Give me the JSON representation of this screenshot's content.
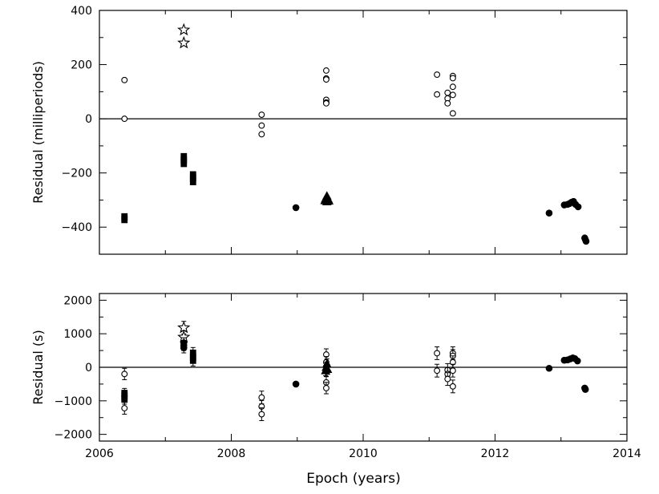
{
  "chart_data": [
    {
      "type": "scatter",
      "title": "",
      "xlabel": "",
      "ylabel": "Residual (milliperiods)",
      "xlim": [
        2006,
        2014
      ],
      "ylim": [
        -500,
        400
      ],
      "yticks": [
        -400,
        -200,
        0,
        200,
        400
      ],
      "yticks_minor": [
        -500,
        -300,
        -100,
        100,
        300
      ],
      "xticks_labeled": false,
      "grid": false,
      "zero_line": true,
      "series": [
        {
          "marker": "open-circle",
          "points": [
            [
              2006.38,
              143
            ],
            [
              2006.38,
              0
            ],
            [
              2008.46,
              15
            ],
            [
              2008.46,
              -25
            ],
            [
              2008.46,
              -57
            ],
            [
              2009.44,
              178
            ],
            [
              2009.44,
              149
            ],
            [
              2009.44,
              145
            ],
            [
              2009.44,
              70
            ],
            [
              2009.44,
              60
            ],
            [
              2009.44,
              57
            ],
            [
              2011.12,
              163
            ],
            [
              2011.12,
              90
            ],
            [
              2011.28,
              96
            ],
            [
              2011.28,
              75
            ],
            [
              2011.28,
              57
            ],
            [
              2011.36,
              158
            ],
            [
              2011.36,
              150
            ],
            [
              2011.36,
              118
            ],
            [
              2011.36,
              88
            ],
            [
              2011.36,
              20
            ]
          ]
        },
        {
          "marker": "filled-square",
          "points": [
            [
              2006.38,
              -362
            ],
            [
              2006.38,
              -372
            ],
            [
              2007.28,
              -140
            ],
            [
              2007.28,
              -152
            ],
            [
              2007.28,
              -165
            ],
            [
              2007.42,
              -207
            ],
            [
              2007.42,
              -218
            ],
            [
              2007.42,
              -232
            ]
          ]
        },
        {
          "marker": "open-star",
          "points": [
            [
              2007.28,
              328
            ],
            [
              2007.28,
              280
            ]
          ]
        },
        {
          "marker": "filled-triangle",
          "points": [
            [
              2009.45,
              -285
            ],
            [
              2009.43,
              -295
            ],
            [
              2009.47,
              -297
            ],
            [
              2009.42,
              -302
            ],
            [
              2009.48,
              -303
            ],
            [
              2009.45,
              -306
            ]
          ]
        },
        {
          "marker": "filled-circle",
          "points": [
            [
              2008.98,
              -328
            ],
            [
              2012.82,
              -348
            ],
            [
              2013.05,
              -318
            ],
            [
              2013.1,
              -316
            ],
            [
              2013.13,
              -313
            ],
            [
              2013.16,
              -308
            ],
            [
              2013.19,
              -305
            ],
            [
              2013.22,
              -316
            ],
            [
              2013.26,
              -325
            ],
            [
              2013.36,
              -440
            ],
            [
              2013.37,
              -446
            ],
            [
              2013.38,
              -452
            ]
          ]
        }
      ]
    },
    {
      "type": "scatter",
      "title": "",
      "xlabel": "Epoch (years)",
      "ylabel": "Residual (s)",
      "xlim": [
        2006,
        2014
      ],
      "ylim": [
        -2200,
        2200
      ],
      "xticks": [
        2006,
        2008,
        2010,
        2012,
        2014
      ],
      "xticks_minor": [
        2007,
        2009,
        2011,
        2013
      ],
      "yticks": [
        -2000,
        -1000,
        0,
        1000,
        2000
      ],
      "yticks_minor": [
        -1500,
        -500,
        500,
        1500
      ],
      "grid": false,
      "zero_line": true,
      "series": [
        {
          "marker": "open-circle",
          "errorbars": true,
          "points": [
            [
              2006.38,
              -200,
              170
            ],
            [
              2006.38,
              -1220,
              180
            ],
            [
              2008.46,
              -900,
              190
            ],
            [
              2008.46,
              -1170,
              180
            ],
            [
              2008.46,
              -1400,
              190
            ],
            [
              2009.44,
              380,
              170
            ],
            [
              2009.44,
              150,
              170
            ],
            [
              2009.44,
              -100,
              170
            ],
            [
              2009.44,
              -450,
              170
            ],
            [
              2009.44,
              -620,
              170
            ],
            [
              2011.12,
              420,
              190
            ],
            [
              2011.12,
              -100,
              190
            ],
            [
              2011.28,
              -80,
              190
            ],
            [
              2011.28,
              -200,
              190
            ],
            [
              2011.28,
              -350,
              190
            ],
            [
              2011.36,
              420,
              190
            ],
            [
              2011.36,
              340,
              190
            ],
            [
              2011.36,
              150,
              190
            ],
            [
              2011.36,
              -100,
              190
            ],
            [
              2011.36,
              -570,
              190
            ]
          ]
        },
        {
          "marker": "filled-square",
          "errorbars": true,
          "points": [
            [
              2006.38,
              -780,
              150
            ],
            [
              2006.38,
              -860,
              150
            ],
            [
              2006.38,
              -950,
              150
            ],
            [
              2007.42,
              420,
              170
            ],
            [
              2007.42,
              300,
              170
            ],
            [
              2007.42,
              210,
              170
            ]
          ]
        },
        {
          "marker": "open-star",
          "errorbars": true,
          "points": [
            [
              2007.28,
              1180,
              190
            ],
            [
              2007.28,
              900,
              190
            ]
          ]
        },
        {
          "marker": "filled-triangle",
          "errorbars": true,
          "points": [
            [
              2009.45,
              100,
              150
            ],
            [
              2009.44,
              0,
              150
            ],
            [
              2009.46,
              -60,
              150
            ],
            [
              2009.43,
              -100,
              150
            ]
          ]
        },
        {
          "marker": "filled-circle",
          "errorbars": true,
          "points": [
            [
              2007.28,
              730,
              150
            ],
            [
              2007.28,
              650,
              150
            ],
            [
              2007.28,
              580,
              150
            ],
            [
              2008.98,
              -500,
              0
            ],
            [
              2012.82,
              -30,
              0
            ],
            [
              2013.05,
              210,
              0
            ],
            [
              2013.1,
              220,
              0
            ],
            [
              2013.14,
              250,
              0
            ],
            [
              2013.18,
              280,
              0
            ],
            [
              2013.21,
              260,
              0
            ],
            [
              2013.25,
              190,
              0
            ],
            [
              2013.36,
              -620,
              0
            ],
            [
              2013.37,
              -660,
              0
            ]
          ]
        }
      ]
    }
  ]
}
